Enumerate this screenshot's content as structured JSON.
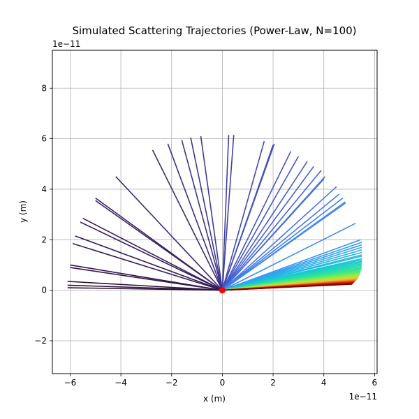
{
  "chart_data": {
    "type": "line",
    "title": "Simulated Scattering Trajectories (Power-Law, N=100)",
    "xlabel": "x (m)",
    "ylabel": "y (m)",
    "x_offset_text": "1e−11",
    "y_offset_text": "1e−11",
    "xlim": [
      -6.7,
      6.1
    ],
    "ylim": [
      -3.3,
      9.5
    ],
    "xticks": [
      -6,
      -4,
      -2,
      0,
      2,
      4,
      6
    ],
    "xtick_labels": [
      "−6",
      "−4",
      "−2",
      "0",
      "2",
      "4",
      "6"
    ],
    "yticks": [
      -2,
      0,
      2,
      4,
      6,
      8
    ],
    "ytick_labels": [
      "−2",
      "0",
      "2",
      "4",
      "6",
      "8"
    ],
    "grid": true,
    "legend": "none",
    "origin": {
      "x": 0,
      "y": 0,
      "color": "#ff0000"
    },
    "trajectories": [
      {
        "x": -6.1,
        "y": 0.1,
        "color": "#30123b"
      },
      {
        "x": -6.1,
        "y": 0.2,
        "color": "#30123b"
      },
      {
        "x": -6.1,
        "y": 0.35,
        "color": "#30123b"
      },
      {
        "x": -6.0,
        "y": 0.9,
        "color": "#32164a"
      },
      {
        "x": -6.0,
        "y": 1.0,
        "color": "#32164a"
      },
      {
        "x": -5.9,
        "y": 1.85,
        "color": "#341b55"
      },
      {
        "x": -5.8,
        "y": 2.15,
        "color": "#341b55"
      },
      {
        "x": -5.6,
        "y": 2.7,
        "color": "#361e5d"
      },
      {
        "x": -5.5,
        "y": 2.85,
        "color": "#361e5d"
      },
      {
        "x": -5.0,
        "y": 3.55,
        "color": "#382264"
      },
      {
        "x": -5.0,
        "y": 3.65,
        "color": "#382264"
      },
      {
        "x": -4.2,
        "y": 4.5,
        "color": "#3a266c"
      },
      {
        "x": -2.75,
        "y": 5.55,
        "color": "#3a2a76"
      },
      {
        "x": -2.15,
        "y": 5.8,
        "color": "#3b2f7f"
      },
      {
        "x": -1.6,
        "y": 5.95,
        "color": "#3c3387"
      },
      {
        "x": -1.25,
        "y": 6.05,
        "color": "#3d378f"
      },
      {
        "x": -0.85,
        "y": 6.1,
        "color": "#3e3b97"
      },
      {
        "x": 0.25,
        "y": 6.15,
        "color": "#3f3f9f"
      },
      {
        "x": 0.45,
        "y": 6.15,
        "color": "#4043a6"
      },
      {
        "x": 1.65,
        "y": 5.9,
        "color": "#4148ae"
      },
      {
        "x": 2.0,
        "y": 5.75,
        "color": "#424cb4"
      },
      {
        "x": 2.05,
        "y": 5.8,
        "color": "#4250ba"
      },
      {
        "x": 2.7,
        "y": 5.5,
        "color": "#4455c0"
      },
      {
        "x": 3.0,
        "y": 5.3,
        "color": "#4559c6"
      },
      {
        "x": 3.35,
        "y": 5.1,
        "color": "#465dcb"
      },
      {
        "x": 3.6,
        "y": 4.9,
        "color": "#4661d0"
      },
      {
        "x": 3.9,
        "y": 4.75,
        "color": "#4766d5"
      },
      {
        "x": 4.05,
        "y": 4.5,
        "color": "#466bd9"
      },
      {
        "x": 4.0,
        "y": 4.4,
        "color": "#4570dd"
      },
      {
        "x": 4.5,
        "y": 4.1,
        "color": "#4475e1"
      },
      {
        "x": 4.6,
        "y": 3.8,
        "color": "#437ae5"
      },
      {
        "x": 4.75,
        "y": 3.65,
        "color": "#427fe8"
      },
      {
        "x": 4.85,
        "y": 3.5,
        "color": "#4185eb"
      },
      {
        "x": 4.85,
        "y": 3.45,
        "color": "#3f8aee"
      },
      {
        "x": 5.25,
        "y": 2.65,
        "color": "#3d8ff0"
      },
      {
        "x": 5.45,
        "y": 2.0,
        "color": "#3a97f0"
      },
      {
        "x": 5.5,
        "y": 1.9,
        "color": "#379df0"
      },
      {
        "x": 5.5,
        "y": 1.8,
        "color": "#33a3ee"
      },
      {
        "x": 5.5,
        "y": 1.7,
        "color": "#2fa9ec"
      },
      {
        "x": 5.5,
        "y": 1.6,
        "color": "#2baeea"
      },
      {
        "x": 5.5,
        "y": 1.5,
        "color": "#27b4e6"
      },
      {
        "x": 5.5,
        "y": 1.4,
        "color": "#23b9e2"
      },
      {
        "x": 5.5,
        "y": 1.35,
        "color": "#1fbfde"
      },
      {
        "x": 5.5,
        "y": 1.25,
        "color": "#1cc4d8"
      },
      {
        "x": 5.5,
        "y": 1.2,
        "color": "#1ac9d2"
      },
      {
        "x": 5.5,
        "y": 1.15,
        "color": "#19cdcb"
      },
      {
        "x": 5.5,
        "y": 1.1,
        "color": "#1ad2c4"
      },
      {
        "x": 5.5,
        "y": 1.05,
        "color": "#1cd6bc"
      },
      {
        "x": 5.5,
        "y": 1.0,
        "color": "#20d9b3"
      },
      {
        "x": 5.5,
        "y": 0.95,
        "color": "#26dcaa"
      },
      {
        "x": 5.5,
        "y": 0.9,
        "color": "#2ddfa0"
      },
      {
        "x": 5.48,
        "y": 0.86,
        "color": "#36e296"
      },
      {
        "x": 5.47,
        "y": 0.82,
        "color": "#40e48b"
      },
      {
        "x": 5.46,
        "y": 0.78,
        "color": "#4ae680"
      },
      {
        "x": 5.45,
        "y": 0.74,
        "color": "#55e876"
      },
      {
        "x": 5.44,
        "y": 0.71,
        "color": "#62ea6b"
      },
      {
        "x": 5.43,
        "y": 0.68,
        "color": "#6eeb61"
      },
      {
        "x": 5.42,
        "y": 0.65,
        "color": "#7bec57"
      },
      {
        "x": 5.41,
        "y": 0.62,
        "color": "#88ec4e"
      },
      {
        "x": 5.4,
        "y": 0.6,
        "color": "#95eb46"
      },
      {
        "x": 5.39,
        "y": 0.58,
        "color": "#a2e83f"
      },
      {
        "x": 5.38,
        "y": 0.56,
        "color": "#aee539"
      },
      {
        "x": 5.37,
        "y": 0.54,
        "color": "#bae134"
      },
      {
        "x": 5.36,
        "y": 0.52,
        "color": "#c5dc31"
      },
      {
        "x": 5.35,
        "y": 0.5,
        "color": "#cfd62f"
      },
      {
        "x": 5.34,
        "y": 0.48,
        "color": "#d9cf2f"
      },
      {
        "x": 5.33,
        "y": 0.46,
        "color": "#e2c730"
      },
      {
        "x": 5.32,
        "y": 0.45,
        "color": "#eabe32"
      },
      {
        "x": 5.31,
        "y": 0.44,
        "color": "#f0b433"
      },
      {
        "x": 5.3,
        "y": 0.43,
        "color": "#f5aa34"
      },
      {
        "x": 5.29,
        "y": 0.42,
        "color": "#f89e33"
      },
      {
        "x": 5.28,
        "y": 0.41,
        "color": "#fa9230"
      },
      {
        "x": 5.27,
        "y": 0.4,
        "color": "#fb862c"
      },
      {
        "x": 5.26,
        "y": 0.39,
        "color": "#fb7927"
      },
      {
        "x": 5.25,
        "y": 0.38,
        "color": "#f96c21"
      },
      {
        "x": 5.24,
        "y": 0.37,
        "color": "#f5601b"
      },
      {
        "x": 5.23,
        "y": 0.36,
        "color": "#f05416"
      },
      {
        "x": 5.22,
        "y": 0.35,
        "color": "#ea4911"
      },
      {
        "x": 5.21,
        "y": 0.34,
        "color": "#e33f0d"
      },
      {
        "x": 5.2,
        "y": 0.33,
        "color": "#db350a"
      },
      {
        "x": 5.19,
        "y": 0.32,
        "color": "#d22d07"
      },
      {
        "x": 5.18,
        "y": 0.31,
        "color": "#c82505"
      },
      {
        "x": 5.17,
        "y": 0.3,
        "color": "#bd1f04"
      },
      {
        "x": 5.16,
        "y": 0.29,
        "color": "#b21903"
      },
      {
        "x": 5.15,
        "y": 0.28,
        "color": "#a61403"
      },
      {
        "x": 5.14,
        "y": 0.27,
        "color": "#9a0f02"
      },
      {
        "x": 5.13,
        "y": 0.26,
        "color": "#8c0a02"
      },
      {
        "x": 5.12,
        "y": 0.25,
        "color": "#7f0603"
      },
      {
        "x": 5.11,
        "y": 0.24,
        "color": "#7a0403"
      }
    ]
  }
}
